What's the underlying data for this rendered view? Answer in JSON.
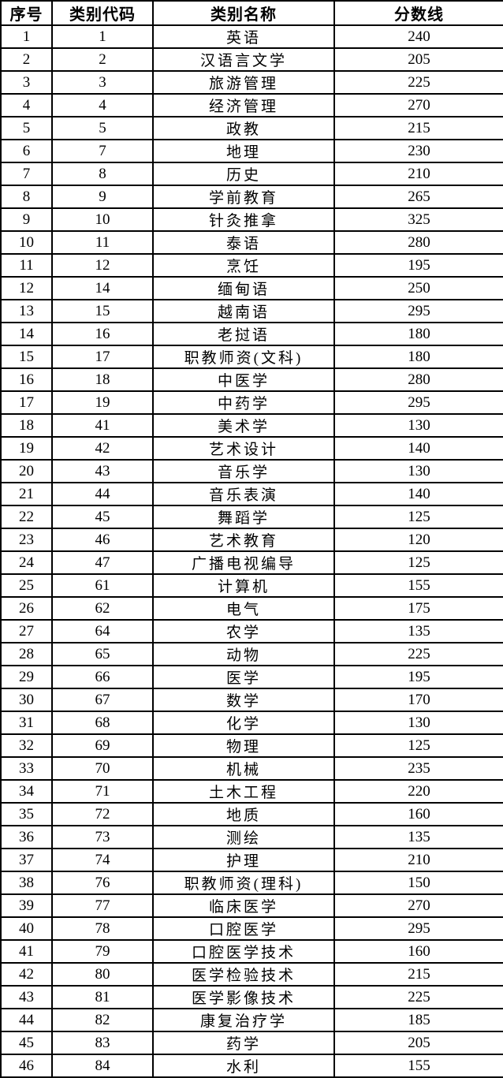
{
  "table": {
    "headers": [
      "序号",
      "类别代码",
      "类别名称",
      "分数线"
    ],
    "column_keys": [
      "index",
      "code",
      "name",
      "score"
    ],
    "rows": [
      [
        "1",
        "1",
        "英语",
        "240"
      ],
      [
        "2",
        "2",
        "汉语言文学",
        "205"
      ],
      [
        "3",
        "3",
        "旅游管理",
        "225"
      ],
      [
        "4",
        "4",
        "经济管理",
        "270"
      ],
      [
        "5",
        "5",
        "政教",
        "215"
      ],
      [
        "6",
        "7",
        "地理",
        "230"
      ],
      [
        "7",
        "8",
        "历史",
        "210"
      ],
      [
        "8",
        "9",
        "学前教育",
        "265"
      ],
      [
        "9",
        "10",
        "针灸推拿",
        "325"
      ],
      [
        "10",
        "11",
        "泰语",
        "280"
      ],
      [
        "11",
        "12",
        "烹饪",
        "195"
      ],
      [
        "12",
        "14",
        "缅甸语",
        "250"
      ],
      [
        "13",
        "15",
        "越南语",
        "295"
      ],
      [
        "14",
        "16",
        "老挝语",
        "180"
      ],
      [
        "15",
        "17",
        "职教师资(文科)",
        "180"
      ],
      [
        "16",
        "18",
        "中医学",
        "280"
      ],
      [
        "17",
        "19",
        "中药学",
        "295"
      ],
      [
        "18",
        "41",
        "美术学",
        "130"
      ],
      [
        "19",
        "42",
        "艺术设计",
        "140"
      ],
      [
        "20",
        "43",
        "音乐学",
        "130"
      ],
      [
        "21",
        "44",
        "音乐表演",
        "140"
      ],
      [
        "22",
        "45",
        "舞蹈学",
        "125"
      ],
      [
        "23",
        "46",
        "艺术教育",
        "120"
      ],
      [
        "24",
        "47",
        "广播电视编导",
        "125"
      ],
      [
        "25",
        "61",
        "计算机",
        "155"
      ],
      [
        "26",
        "62",
        "电气",
        "175"
      ],
      [
        "27",
        "64",
        "农学",
        "135"
      ],
      [
        "28",
        "65",
        "动物",
        "225"
      ],
      [
        "29",
        "66",
        "医学",
        "195"
      ],
      [
        "30",
        "67",
        "数学",
        "170"
      ],
      [
        "31",
        "68",
        "化学",
        "130"
      ],
      [
        "32",
        "69",
        "物理",
        "125"
      ],
      [
        "33",
        "70",
        "机械",
        "235"
      ],
      [
        "34",
        "71",
        "土木工程",
        "220"
      ],
      [
        "35",
        "72",
        "地质",
        "160"
      ],
      [
        "36",
        "73",
        "测绘",
        "135"
      ],
      [
        "37",
        "74",
        "护理",
        "210"
      ],
      [
        "38",
        "76",
        "职教师资(理科)",
        "150"
      ],
      [
        "39",
        "77",
        "临床医学",
        "270"
      ],
      [
        "40",
        "78",
        "口腔医学",
        "295"
      ],
      [
        "41",
        "79",
        "口腔医学技术",
        "160"
      ],
      [
        "42",
        "80",
        "医学检验技术",
        "215"
      ],
      [
        "43",
        "81",
        "医学影像技术",
        "225"
      ],
      [
        "44",
        "82",
        "康复治疗学",
        "185"
      ],
      [
        "45",
        "83",
        "药学",
        "205"
      ],
      [
        "46",
        "84",
        "水利",
        "155"
      ]
    ]
  }
}
